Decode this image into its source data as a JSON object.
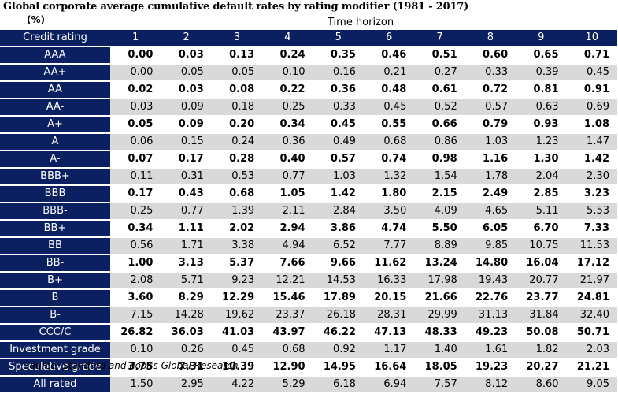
{
  "title": "Global corporate average cumulative default rates by rating modifier (1981 - 2017)",
  "unit": "(%)",
  "horizon_label": "Time horizon",
  "corner_label": "Credit rating",
  "columns": [
    "1",
    "2",
    "3",
    "4",
    "5",
    "6",
    "7",
    "8",
    "9",
    "10"
  ],
  "rows": [
    {
      "rating": "AAA",
      "values": [
        "0.00",
        "0.03",
        "0.13",
        "0.24",
        "0.35",
        "0.46",
        "0.51",
        "0.60",
        "0.65",
        "0.71"
      ]
    },
    {
      "rating": "AA+",
      "values": [
        "0.00",
        "0.05",
        "0.05",
        "0.10",
        "0.16",
        "0.21",
        "0.27",
        "0.33",
        "0.39",
        "0.45"
      ]
    },
    {
      "rating": "AA",
      "values": [
        "0.02",
        "0.03",
        "0.08",
        "0.22",
        "0.36",
        "0.48",
        "0.61",
        "0.72",
        "0.81",
        "0.91"
      ]
    },
    {
      "rating": "AA-",
      "values": [
        "0.03",
        "0.09",
        "0.18",
        "0.25",
        "0.33",
        "0.45",
        "0.52",
        "0.57",
        "0.63",
        "0.69"
      ]
    },
    {
      "rating": "A+",
      "values": [
        "0.05",
        "0.09",
        "0.20",
        "0.34",
        "0.45",
        "0.55",
        "0.66",
        "0.79",
        "0.93",
        "1.08"
      ]
    },
    {
      "rating": "A",
      "values": [
        "0.06",
        "0.15",
        "0.24",
        "0.36",
        "0.49",
        "0.68",
        "0.86",
        "1.03",
        "1.23",
        "1.47"
      ]
    },
    {
      "rating": "A-",
      "values": [
        "0.07",
        "0.17",
        "0.28",
        "0.40",
        "0.57",
        "0.74",
        "0.98",
        "1.16",
        "1.30",
        "1.42"
      ]
    },
    {
      "rating": "BBB+",
      "values": [
        "0.11",
        "0.31",
        "0.53",
        "0.77",
        "1.03",
        "1.32",
        "1.54",
        "1.78",
        "2.04",
        "2.30"
      ]
    },
    {
      "rating": "BBB",
      "values": [
        "0.17",
        "0.43",
        "0.68",
        "1.05",
        "1.42",
        "1.80",
        "2.15",
        "2.49",
        "2.85",
        "3.23"
      ]
    },
    {
      "rating": "BBB-",
      "values": [
        "0.25",
        "0.77",
        "1.39",
        "2.11",
        "2.84",
        "3.50",
        "4.09",
        "4.65",
        "5.11",
        "5.53"
      ]
    },
    {
      "rating": "BB+",
      "values": [
        "0.34",
        "1.11",
        "2.02",
        "2.94",
        "3.86",
        "4.74",
        "5.50",
        "6.05",
        "6.70",
        "7.33"
      ]
    },
    {
      "rating": "BB",
      "values": [
        "0.56",
        "1.71",
        "3.38",
        "4.94",
        "6.52",
        "7.77",
        "8.89",
        "9.85",
        "10.75",
        "11.53"
      ]
    },
    {
      "rating": "BB-",
      "values": [
        "1.00",
        "3.13",
        "5.37",
        "7.66",
        "9.66",
        "11.62",
        "13.24",
        "14.80",
        "16.04",
        "17.12"
      ]
    },
    {
      "rating": "B+",
      "values": [
        "2.08",
        "5.71",
        "9.23",
        "12.21",
        "14.53",
        "16.33",
        "17.98",
        "19.43",
        "20.77",
        "21.97"
      ]
    },
    {
      "rating": "B",
      "values": [
        "3.60",
        "8.29",
        "12.29",
        "15.46",
        "17.89",
        "20.15",
        "21.66",
        "22.76",
        "23.77",
        "24.81"
      ]
    },
    {
      "rating": "B-",
      "values": [
        "7.15",
        "14.28",
        "19.62",
        "23.37",
        "26.18",
        "28.31",
        "29.99",
        "31.13",
        "31.84",
        "32.40"
      ]
    },
    {
      "rating": "CCC/C",
      "values": [
        "26.82",
        "36.03",
        "41.03",
        "43.97",
        "46.22",
        "47.13",
        "48.33",
        "49.23",
        "50.08",
        "50.71"
      ]
    },
    {
      "rating": "Investment grade",
      "values": [
        "0.10",
        "0.26",
        "0.45",
        "0.68",
        "0.92",
        "1.17",
        "1.40",
        "1.61",
        "1.82",
        "2.03"
      ]
    },
    {
      "rating": "Speculative grade",
      "values": [
        "3.75",
        "7.31",
        "10.39",
        "12.90",
        "14.95",
        "16.64",
        "18.05",
        "19.23",
        "20.27",
        "21.21"
      ]
    },
    {
      "rating": "All rated",
      "values": [
        "1.50",
        "2.95",
        "4.22",
        "5.29",
        "6.18",
        "6.94",
        "7.57",
        "8.12",
        "8.60",
        "9.05"
      ]
    }
  ],
  "source": "Source: Standard and Poor's Global Research",
  "colors": {
    "header": "#0a2060",
    "stripe": "#d9d9d9"
  }
}
